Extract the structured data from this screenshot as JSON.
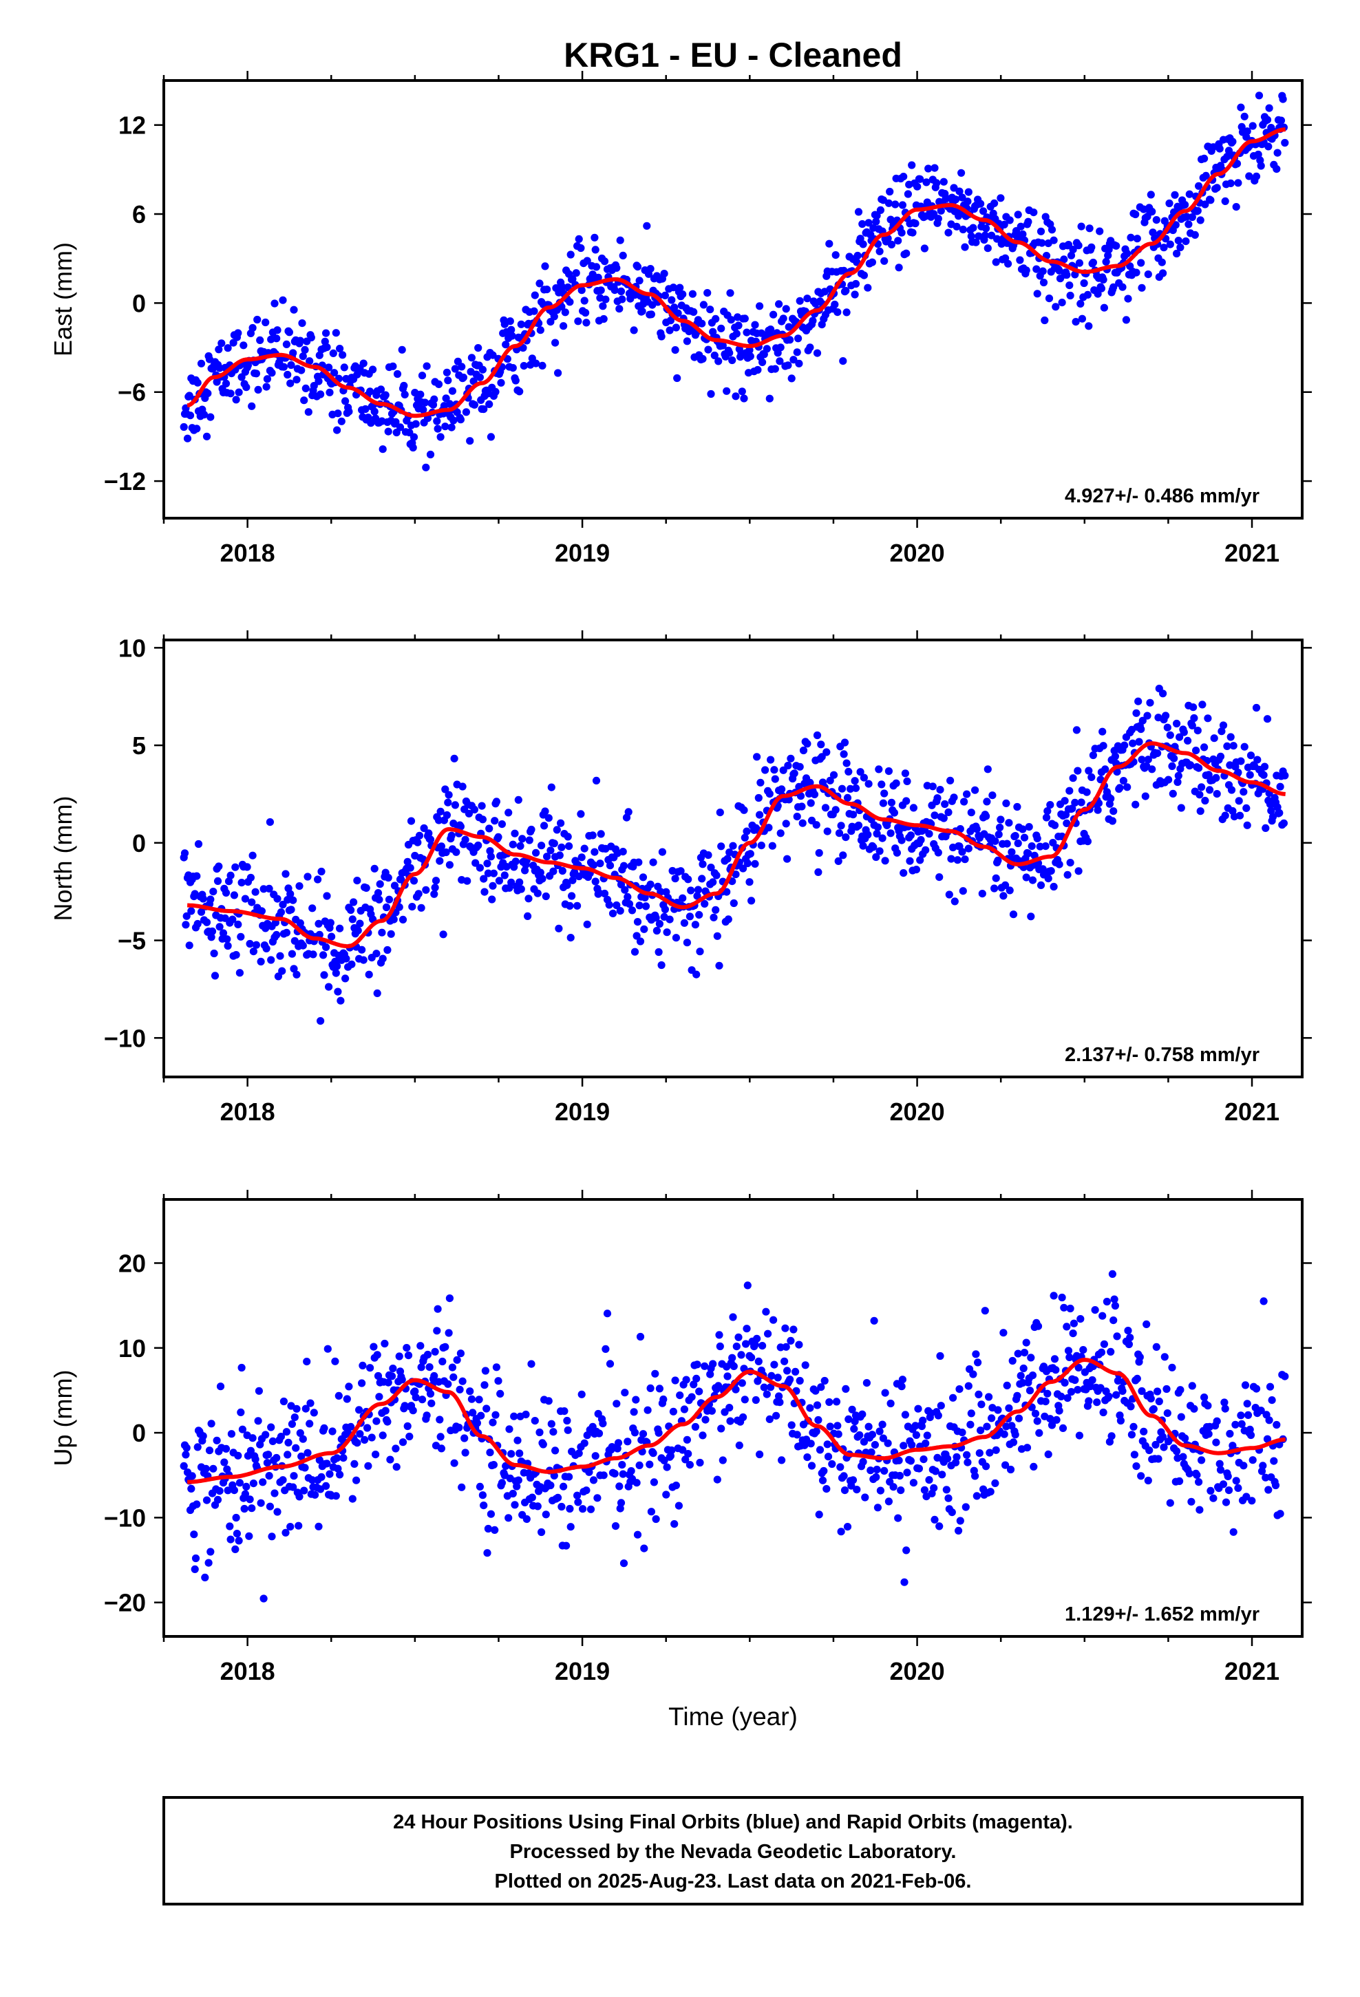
{
  "title": "KRG1  - EU - Cleaned",
  "xlabel": "Time (year)",
  "footer": {
    "line1": "24 Hour Positions Using Final Orbits (blue) and Rapid Orbits (magenta).",
    "line2": "Processed by the Nevada Geodetic Laboratory.",
    "line3": "Plotted on 2025-Aug-23. Last data on 2021-Feb-06."
  },
  "colors": {
    "data": "#0000ff",
    "fit": "#ff0000",
    "frame": "#000000"
  },
  "chart_data": [
    {
      "type": "scatter",
      "ylabel": "East (mm)",
      "rate_label": "4.927+/- 0.486 mm/yr",
      "xlim": [
        2017.75,
        2021.15
      ],
      "ylim": [
        -14.5,
        15.0
      ],
      "xticks": [
        2018,
        2019,
        2020,
        2021
      ],
      "yticks": [
        -12,
        -6,
        0,
        6,
        12
      ],
      "series": [
        {
          "x": [
            2017.82,
            2017.9,
            2018.0,
            2018.1,
            2018.2,
            2018.3,
            2018.4,
            2018.5,
            2018.6,
            2018.7,
            2018.8,
            2018.9,
            2019.0,
            2019.1,
            2019.2,
            2019.3,
            2019.4,
            2019.5,
            2019.6,
            2019.7,
            2019.8,
            2019.9,
            2020.0,
            2020.1,
            2020.2,
            2020.3,
            2020.4,
            2020.5,
            2020.6,
            2020.7,
            2020.8,
            2020.9,
            2021.0,
            2021.1
          ],
          "values": [
            -6.9,
            -5.0,
            -3.8,
            -3.5,
            -4.3,
            -5.7,
            -6.8,
            -7.6,
            -7.2,
            -5.4,
            -2.9,
            -0.3,
            1.2,
            1.6,
            0.6,
            -1.2,
            -2.5,
            -2.9,
            -2.2,
            -0.5,
            2.0,
            4.6,
            6.3,
            6.6,
            5.6,
            4.1,
            2.8,
            2.1,
            2.5,
            4.0,
            6.2,
            8.7,
            10.9,
            11.7
          ],
          "scatter": 1.4
        },
        {
          "x": [
            2017.82,
            2017.95,
            2018.1,
            2018.2,
            2018.3,
            2018.4,
            2018.5,
            2018.6,
            2018.7,
            2018.8,
            2018.9,
            2019.0,
            2019.1,
            2019.2,
            2019.3,
            2019.4,
            2019.5,
            2019.6,
            2019.7,
            2019.8,
            2019.9,
            2020.0,
            2020.1,
            2020.2,
            2020.3,
            2020.4,
            2020.5,
            2020.6,
            2020.7,
            2020.8,
            2020.9,
            2021.0,
            2021.1
          ],
          "values": [
            -3.2,
            -3.5,
            -3.9,
            -4.9,
            -5.3,
            -4.0,
            -1.6,
            0.7,
            0.3,
            -0.6,
            -1.0,
            -1.3,
            -1.8,
            -2.6,
            -3.3,
            -2.6,
            0.0,
            2.4,
            2.9,
            2.0,
            1.2,
            0.9,
            0.6,
            -0.2,
            -1.1,
            -0.7,
            1.7,
            3.9,
            5.1,
            4.6,
            3.7,
            3.1,
            2.5
          ],
          "scatter": 1.4
        },
        {
          "x": [
            2017.82,
            2017.95,
            2018.1,
            2018.25,
            2018.4,
            2018.5,
            2018.6,
            2018.7,
            2018.8,
            2018.9,
            2019.0,
            2019.1,
            2019.2,
            2019.3,
            2019.4,
            2019.5,
            2019.6,
            2019.7,
            2019.8,
            2019.9,
            2020.0,
            2020.1,
            2020.2,
            2020.3,
            2020.4,
            2020.5,
            2020.6,
            2020.7,
            2020.8,
            2020.9,
            2021.0,
            2021.1
          ],
          "values": [
            -5.8,
            -5.2,
            -4.0,
            -2.4,
            3.4,
            6.2,
            4.8,
            -0.4,
            -3.8,
            -4.6,
            -4.0,
            -3.0,
            -1.5,
            1.0,
            4.2,
            7.2,
            5.5,
            0.8,
            -2.6,
            -3.0,
            -2.0,
            -1.6,
            -0.5,
            2.5,
            6.0,
            8.6,
            7.0,
            2.0,
            -1.5,
            -2.4,
            -1.8,
            -0.8
          ],
          "scatter": 4.5
        }
      ]
    },
    {
      "type": "scatter",
      "ylabel": "North (mm)",
      "rate_label": "2.137+/- 0.758 mm/yr",
      "xlim": [
        2017.75,
        2021.15
      ],
      "ylim": [
        -12.0,
        10.4
      ],
      "xticks": [
        2018,
        2019,
        2020,
        2021
      ],
      "yticks": [
        -10,
        -5,
        0,
        5,
        10
      ]
    },
    {
      "type": "scatter",
      "ylabel": "Up (mm)",
      "rate_label": "1.129+/- 1.652 mm/yr",
      "xlim": [
        2017.75,
        2021.15
      ],
      "ylim": [
        -24.0,
        27.5
      ],
      "xticks": [
        2018,
        2019,
        2020,
        2021
      ],
      "yticks": [
        -20,
        -10,
        0,
        10,
        20
      ]
    }
  ]
}
